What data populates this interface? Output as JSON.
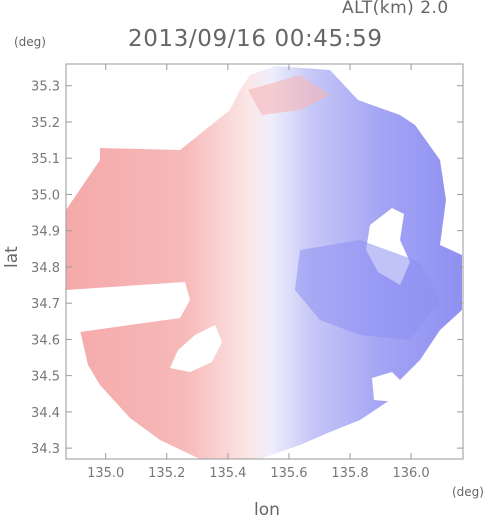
{
  "header": {
    "altitude_label": "ALT(km) 2.0",
    "timestamp": "2013/09/16 00:45:59"
  },
  "axes": {
    "y_unit": "(deg)",
    "x_unit": "(deg)",
    "y_title": "lat",
    "x_title": "lon",
    "x_ticks": [
      "135.0",
      "135.2",
      "135.4",
      "135.6",
      "135.8",
      "136.0"
    ],
    "y_ticks": [
      "35.3",
      "35.2",
      "35.1",
      "35.0",
      "34.9",
      "34.8",
      "34.7",
      "34.6",
      "34.5",
      "34.4",
      "34.3"
    ],
    "x_range": [
      134.87,
      136.17
    ],
    "y_range": [
      34.27,
      35.36
    ]
  },
  "colors": {
    "positive": "#f6a3a3",
    "negative": "#8a8cf2",
    "neutral": "#f4f4fb",
    "frame": "#999999"
  }
}
